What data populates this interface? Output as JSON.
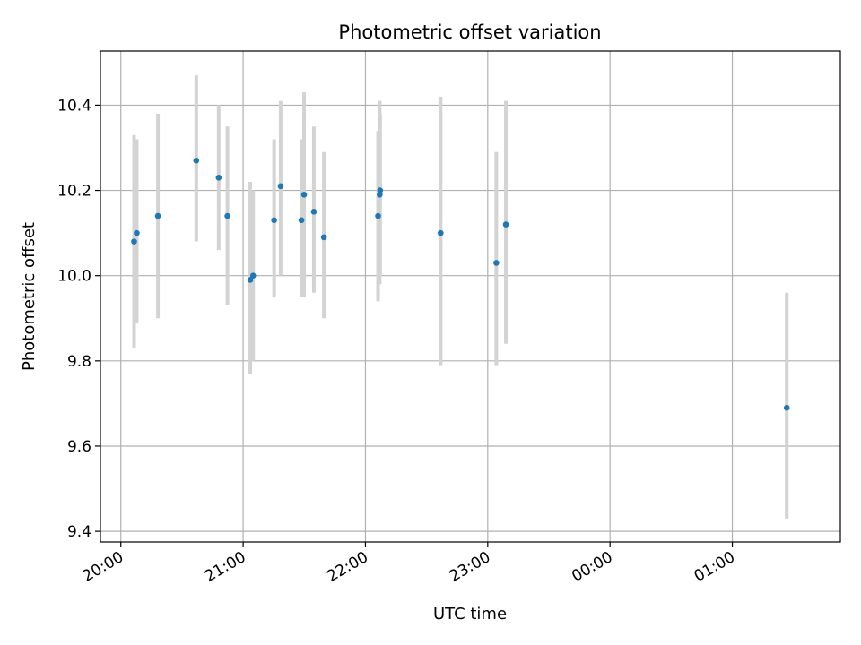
{
  "chart_data": {
    "type": "scatter",
    "title": "Photometric offset variation",
    "xlabel": "UTC time",
    "ylabel": "Photometric offset",
    "x_ticks": [
      "20:00",
      "21:00",
      "22:00",
      "23:00",
      "00:00",
      "01:00"
    ],
    "y_ticks": [
      "9.4",
      "9.6",
      "9.8",
      "10.0",
      "10.2",
      "10.4"
    ],
    "y_tick_values": [
      9.4,
      9.6,
      9.8,
      10.0,
      10.2,
      10.4
    ],
    "x_tick_minutes": [
      0,
      60,
      120,
      180,
      240,
      300
    ],
    "xlim_minutes": [
      -10,
      353
    ],
    "ylim": [
      9.375,
      10.527
    ],
    "grid": true,
    "colors": {
      "point": "#1f77b4",
      "errorbar": "#d3d3d3",
      "grid": "#b0b0b0"
    },
    "points": [
      {
        "t": "20:06",
        "m": 6.5,
        "y": 10.08,
        "lo": 9.83,
        "hi": 10.33
      },
      {
        "t": "20:08",
        "m": 7.8,
        "y": 10.1,
        "lo": 9.89,
        "hi": 10.32
      },
      {
        "t": "20:18",
        "m": 18.2,
        "y": 10.14,
        "lo": 9.9,
        "hi": 10.38
      },
      {
        "t": "20:37",
        "m": 37.0,
        "y": 10.27,
        "lo": 10.08,
        "hi": 10.47
      },
      {
        "t": "20:48",
        "m": 48.0,
        "y": 10.23,
        "lo": 10.06,
        "hi": 10.4
      },
      {
        "t": "20:52",
        "m": 52.3,
        "y": 10.14,
        "lo": 9.93,
        "hi": 10.35
      },
      {
        "t": "21:03",
        "m": 63.5,
        "y": 9.99,
        "lo": 9.77,
        "hi": 10.22
      },
      {
        "t": "21:05",
        "m": 64.9,
        "y": 10.0,
        "lo": 9.8,
        "hi": 10.2
      },
      {
        "t": "21:15",
        "m": 75.2,
        "y": 10.13,
        "lo": 9.95,
        "hi": 10.32
      },
      {
        "t": "21:18",
        "m": 78.4,
        "y": 10.21,
        "lo": 10.0,
        "hi": 10.41
      },
      {
        "t": "21:28",
        "m": 88.6,
        "y": 10.13,
        "lo": 9.95,
        "hi": 10.32
      },
      {
        "t": "21:30",
        "m": 89.9,
        "y": 10.19,
        "lo": 9.95,
        "hi": 10.43
      },
      {
        "t": "21:35",
        "m": 94.7,
        "y": 10.15,
        "lo": 9.96,
        "hi": 10.35
      },
      {
        "t": "21:40",
        "m": 99.6,
        "y": 10.09,
        "lo": 9.9,
        "hi": 10.29
      },
      {
        "t": "22:06",
        "m": 126.2,
        "y": 10.14,
        "lo": 9.94,
        "hi": 10.34
      },
      {
        "t": "22:07",
        "m": 127.0,
        "y": 10.19,
        "lo": 9.98,
        "hi": 10.41
      },
      {
        "t": "22:07",
        "m": 127.2,
        "y": 10.2,
        "lo": 10.0,
        "hi": 10.38
      },
      {
        "t": "22:37",
        "m": 156.9,
        "y": 10.1,
        "lo": 9.79,
        "hi": 10.42
      },
      {
        "t": "23:04",
        "m": 184.2,
        "y": 10.03,
        "lo": 9.79,
        "hi": 10.29
      },
      {
        "t": "23:09",
        "m": 188.9,
        "y": 10.12,
        "lo": 9.84,
        "hi": 10.41
      },
      {
        "t": "01:26",
        "m": 326.7,
        "y": 9.69,
        "lo": 9.43,
        "hi": 9.96
      }
    ]
  }
}
